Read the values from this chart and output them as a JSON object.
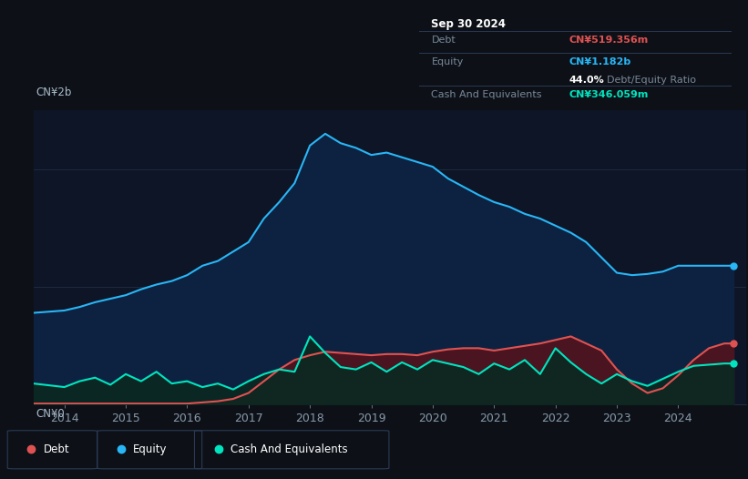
{
  "bg_color": "#0d1117",
  "plot_bg": "#0d1526",
  "grid_color": "#1e2d45",
  "ylabel_top": "CN¥2b",
  "ylabel_bottom": "CN¥0",
  "x_ticks": [
    2014,
    2015,
    2016,
    2017,
    2018,
    2019,
    2020,
    2021,
    2022,
    2023,
    2024
  ],
  "ylim_max": 2.5,
  "tooltip": {
    "date": "Sep 30 2024",
    "debt_label": "Debt",
    "debt_value": "CN¥519.356m",
    "debt_color": "#e05252",
    "equity_label": "Equity",
    "equity_value": "CN¥1.182b",
    "equity_color": "#29b6f6",
    "ratio_value": "44.0%",
    "ratio_label": "Debt/Equity Ratio",
    "cash_label": "Cash And Equivalents",
    "cash_value": "CN¥346.059m",
    "cash_color": "#00e5c0"
  },
  "legend": [
    {
      "label": "Debt",
      "color": "#e05252"
    },
    {
      "label": "Equity",
      "color": "#29b6f6"
    },
    {
      "label": "Cash And Equivalents",
      "color": "#00e5c0"
    }
  ],
  "equity": {
    "x": [
      2013.5,
      2014.0,
      2014.25,
      2014.5,
      2014.75,
      2015.0,
      2015.25,
      2015.5,
      2015.75,
      2016.0,
      2016.25,
      2016.5,
      2016.75,
      2017.0,
      2017.25,
      2017.5,
      2017.75,
      2018.0,
      2018.25,
      2018.5,
      2018.75,
      2019.0,
      2019.25,
      2019.5,
      2019.75,
      2020.0,
      2020.25,
      2020.5,
      2020.75,
      2021.0,
      2021.25,
      2021.5,
      2021.75,
      2022.0,
      2022.25,
      2022.5,
      2022.75,
      2023.0,
      2023.25,
      2023.5,
      2023.75,
      2024.0,
      2024.25,
      2024.5,
      2024.75,
      2024.9
    ],
    "y": [
      0.78,
      0.8,
      0.83,
      0.87,
      0.9,
      0.93,
      0.98,
      1.02,
      1.05,
      1.1,
      1.18,
      1.22,
      1.3,
      1.38,
      1.58,
      1.72,
      1.88,
      2.2,
      2.3,
      2.22,
      2.18,
      2.12,
      2.14,
      2.1,
      2.06,
      2.02,
      1.92,
      1.85,
      1.78,
      1.72,
      1.68,
      1.62,
      1.58,
      1.52,
      1.46,
      1.38,
      1.25,
      1.12,
      1.1,
      1.11,
      1.13,
      1.18,
      1.18,
      1.18,
      1.18,
      1.18
    ],
    "line_color": "#29b6f6",
    "fill_color": "#0d2240"
  },
  "debt": {
    "x": [
      2013.5,
      2014.0,
      2014.25,
      2014.5,
      2014.75,
      2015.0,
      2015.25,
      2015.5,
      2015.75,
      2016.0,
      2016.25,
      2016.5,
      2016.75,
      2017.0,
      2017.25,
      2017.5,
      2017.75,
      2018.0,
      2018.25,
      2018.5,
      2018.75,
      2019.0,
      2019.25,
      2019.5,
      2019.75,
      2020.0,
      2020.25,
      2020.5,
      2020.75,
      2021.0,
      2021.25,
      2021.5,
      2021.75,
      2022.0,
      2022.25,
      2022.5,
      2022.75,
      2023.0,
      2023.25,
      2023.5,
      2023.75,
      2024.0,
      2024.25,
      2024.5,
      2024.75,
      2024.9
    ],
    "y": [
      0.01,
      0.01,
      0.01,
      0.01,
      0.01,
      0.01,
      0.01,
      0.01,
      0.01,
      0.01,
      0.02,
      0.03,
      0.05,
      0.1,
      0.2,
      0.3,
      0.38,
      0.42,
      0.45,
      0.44,
      0.43,
      0.42,
      0.43,
      0.43,
      0.42,
      0.45,
      0.47,
      0.48,
      0.48,
      0.46,
      0.48,
      0.5,
      0.52,
      0.55,
      0.58,
      0.52,
      0.46,
      0.3,
      0.18,
      0.1,
      0.14,
      0.25,
      0.38,
      0.48,
      0.52,
      0.52
    ],
    "line_color": "#e05252",
    "fill_color": "#4a1520"
  },
  "cash": {
    "x": [
      2013.5,
      2014.0,
      2014.25,
      2014.5,
      2014.75,
      2015.0,
      2015.25,
      2015.5,
      2015.75,
      2016.0,
      2016.25,
      2016.5,
      2016.75,
      2017.0,
      2017.25,
      2017.5,
      2017.75,
      2018.0,
      2018.25,
      2018.5,
      2018.75,
      2019.0,
      2019.25,
      2019.5,
      2019.75,
      2020.0,
      2020.25,
      2020.5,
      2020.75,
      2021.0,
      2021.25,
      2021.5,
      2021.75,
      2022.0,
      2022.25,
      2022.5,
      2022.75,
      2023.0,
      2023.25,
      2023.5,
      2023.75,
      2024.0,
      2024.25,
      2024.5,
      2024.75,
      2024.9
    ],
    "y": [
      0.18,
      0.15,
      0.2,
      0.23,
      0.17,
      0.26,
      0.2,
      0.28,
      0.18,
      0.2,
      0.15,
      0.18,
      0.13,
      0.2,
      0.26,
      0.3,
      0.28,
      0.58,
      0.44,
      0.32,
      0.3,
      0.36,
      0.28,
      0.36,
      0.3,
      0.38,
      0.35,
      0.32,
      0.26,
      0.35,
      0.3,
      0.38,
      0.26,
      0.48,
      0.36,
      0.26,
      0.18,
      0.26,
      0.2,
      0.16,
      0.22,
      0.28,
      0.33,
      0.34,
      0.35,
      0.35
    ],
    "line_color": "#00e5c0",
    "fill_color": "#0a2820"
  }
}
